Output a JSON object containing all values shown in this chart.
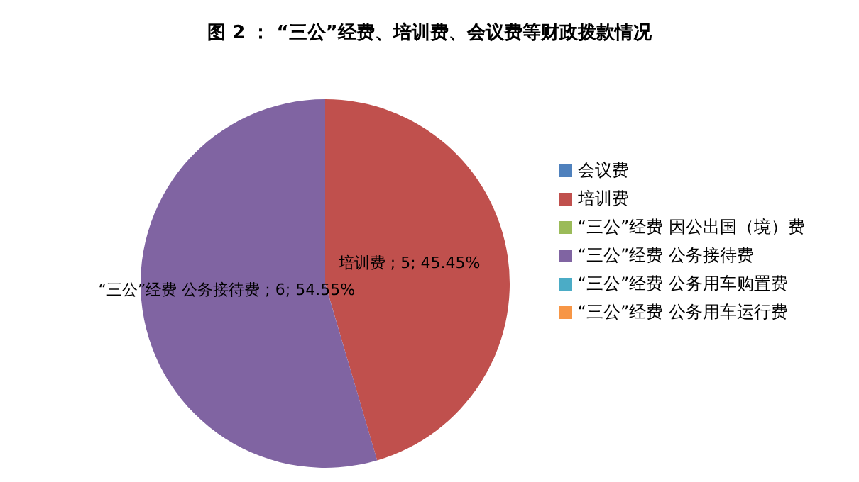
{
  "chart_data": {
    "type": "pie",
    "title": "图 2 ： “三公”经费、培训费、会议费等财政拨款情况",
    "categories": [
      "会议费",
      "培训费",
      "“三公”经费 因公出国（境）费",
      "“三公”经费 公务接待费",
      "“三公”经费 公务用车购置费",
      "“三公”经费 公务用车运行费"
    ],
    "values": [
      0,
      5,
      0,
      6,
      0,
      0
    ],
    "colors": [
      "#4f81bd",
      "#c0504d",
      "#9bbb59",
      "#8064a2",
      "#4bacc6",
      "#f79646"
    ],
    "value_labels": [
      null,
      "培训费 ; 5; 45.45%",
      null,
      "“三公”经费 公务接待费 ; 6; 54.55%",
      null,
      null
    ],
    "legend": "right"
  }
}
